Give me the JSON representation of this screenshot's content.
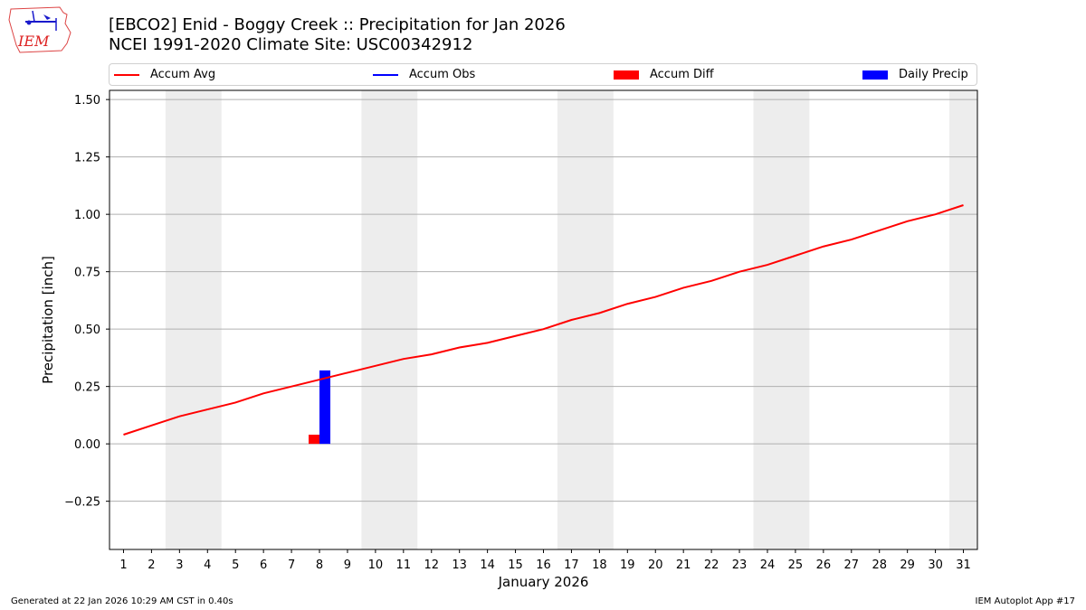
{
  "header": {
    "title_line1": "[EBCO2] Enid - Boggy Creek :: Precipitation for Jan 2026",
    "title_line2": "NCEI 1991-2020 Climate Site: USC00342912",
    "logo_text": "IEM"
  },
  "legend": {
    "items": [
      {
        "label": "Accum Avg",
        "type": "line",
        "color": "#ff0000"
      },
      {
        "label": "Accum Obs",
        "type": "line",
        "color": "#0000ff"
      },
      {
        "label": "Accum Diff",
        "type": "patch",
        "color": "#ff0000"
      },
      {
        "label": "Daily Precip",
        "type": "patch",
        "color": "#0000ff"
      }
    ]
  },
  "footer": {
    "generated": "Generated at 22 Jan 2026 10:29 AM CST in 0.40s",
    "app": "IEM Autoplot App #17"
  },
  "chart_data": {
    "type": "line",
    "title": "[EBCO2] Enid - Boggy Creek :: Precipitation for Jan 2026",
    "subtitle": "NCEI 1991-2020 Climate Site: USC00342912",
    "xlabel": "January 2026",
    "ylabel": "Precipitation [inch]",
    "ylim": [
      -0.46,
      1.54
    ],
    "xlim": [
      0.5,
      31.5
    ],
    "yticks": [
      -0.25,
      0.0,
      0.25,
      0.5,
      0.75,
      1.0,
      1.25,
      1.5
    ],
    "ytick_labels": [
      "−0.25",
      "0.00",
      "0.25",
      "0.50",
      "0.75",
      "1.00",
      "1.25",
      "1.50"
    ],
    "categories": [
      1,
      2,
      3,
      4,
      5,
      6,
      7,
      8,
      9,
      10,
      11,
      12,
      13,
      14,
      15,
      16,
      17,
      18,
      19,
      20,
      21,
      22,
      23,
      24,
      25,
      26,
      27,
      28,
      29,
      30,
      31
    ],
    "grid": true,
    "legend_position": "top",
    "weekend_shading": [
      [
        2.5,
        4.5
      ],
      [
        9.5,
        11.5
      ],
      [
        16.5,
        18.5
      ],
      [
        23.5,
        25.5
      ],
      [
        30.5,
        31.5
      ]
    ],
    "series": [
      {
        "name": "Accum Avg",
        "type": "line",
        "color": "#ff0000",
        "values": [
          0.04,
          0.08,
          0.12,
          0.15,
          0.18,
          0.22,
          0.25,
          0.28,
          0.31,
          0.34,
          0.37,
          0.39,
          0.42,
          0.44,
          0.47,
          0.5,
          0.54,
          0.57,
          0.61,
          0.64,
          0.68,
          0.71,
          0.75,
          0.78,
          0.82,
          0.86,
          0.89,
          0.93,
          0.97,
          1.0,
          1.04
        ]
      },
      {
        "name": "Accum Obs",
        "type": "line",
        "color": "#0000ff",
        "values": []
      },
      {
        "name": "Accum Diff",
        "type": "bar",
        "color": "#ff0000",
        "points": [
          {
            "x": 8,
            "y": 0.04
          }
        ]
      },
      {
        "name": "Daily Precip",
        "type": "bar",
        "color": "#0000ff",
        "points": [
          {
            "x": 8,
            "y": 0.32
          }
        ]
      }
    ]
  }
}
